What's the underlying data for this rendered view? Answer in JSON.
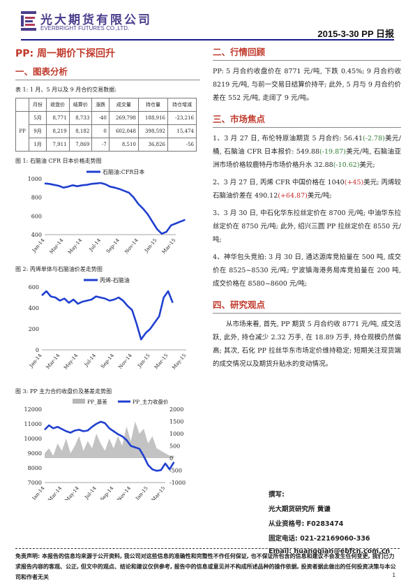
{
  "header": {
    "company_cn": "光大期货有限公司",
    "company_en": "EVERBRIGHT FUTURES CO.,LTD.",
    "date_label": "2015-3-30   PP 日报"
  },
  "title": "PP:  周一期价下探回升",
  "sections": {
    "s1": "一、图表分析",
    "s2": "二、行情回顾",
    "s3": "三、市场焦点",
    "s4": "四、研究观点"
  },
  "table1": {
    "caption": "表 1:  1 月、5 月以及 9 月合约交易数据:",
    "headers": [
      "",
      "月份",
      "收盘价",
      "结算价",
      "涨跌",
      "成交量",
      "持仓量",
      "持仓增减"
    ],
    "product": "PP",
    "rows": [
      [
        "5月",
        "8,771",
        "8,733",
        "-40",
        "269,798",
        "188,916",
        "-23,216"
      ],
      [
        "9月",
        "8,219",
        "8,182",
        "0",
        "602,048",
        "398,592",
        "15,474"
      ],
      [
        "1月",
        "7,911",
        "7,869",
        "-7",
        "8,510",
        "36,826",
        "-56"
      ]
    ]
  },
  "figures": {
    "fig1_caption": "图 1:  石脑油 CFR 日本价格走势图",
    "fig2_caption": "图 2:  丙烯单体与石脑油价差走势图",
    "fig3_caption": "图 3:  PP 主力合约收盘价及基差走势图"
  },
  "chart_data": [
    {
      "type": "line",
      "legend": [
        "石脑油:CFR日本"
      ],
      "x_ticks": [
        "Jan-14",
        "Mar-14",
        "May-14",
        "Jul-14",
        "Sep-14",
        "Nov-14",
        "Jan-15",
        "Mar-15"
      ],
      "ylim": [
        400,
        1000
      ],
      "y_ticks": [
        400,
        600,
        800,
        1000
      ],
      "series": [
        {
          "name": "石脑油:CFR日本",
          "color": "#1f3fcf",
          "x": [
            0,
            0.5,
            1,
            1.5,
            2,
            2.5,
            3,
            3.5,
            4,
            4.5,
            5,
            5.5,
            6,
            6.5,
            7,
            7.5,
            8,
            8.5,
            9,
            9.5,
            10,
            10.5,
            11,
            11.5,
            12,
            12.5,
            13,
            13.5,
            14,
            14.5,
            15
          ],
          "y": [
            950,
            945,
            935,
            925,
            905,
            915,
            930,
            920,
            930,
            935,
            945,
            950,
            955,
            940,
            915,
            905,
            890,
            870,
            850,
            800,
            730,
            680,
            620,
            540,
            460,
            410,
            430,
            500,
            520,
            540,
            560
          ]
        }
      ]
    },
    {
      "type": "line",
      "legend": [
        "丙烯-石脑油"
      ],
      "x_ticks": [
        "Jan-14",
        "Mar-14",
        "May-14",
        "Jul-14",
        "Sep-14",
        "Nov-14",
        "Jan-15",
        "Mar-15",
        "May-15"
      ],
      "ylim": [
        0,
        600
      ],
      "y_ticks": [
        0,
        200,
        400,
        600
      ],
      "series": [
        {
          "name": "丙烯-石脑油",
          "color": "#1f3fcf",
          "x": [
            0,
            0.5,
            1,
            1.5,
            2,
            2.5,
            3,
            3.5,
            4,
            4.5,
            5,
            5.5,
            6,
            6.5,
            7,
            7.5,
            8,
            8.5,
            9,
            9.5,
            10,
            10.5,
            11,
            11.5,
            12,
            12.5,
            13,
            13.5,
            14,
            14.5
          ],
          "y": [
            520,
            560,
            510,
            500,
            470,
            490,
            450,
            480,
            440,
            460,
            470,
            480,
            510,
            500,
            490,
            470,
            480,
            500,
            470,
            420,
            380,
            250,
            100,
            160,
            200,
            260,
            320,
            500,
            560,
            450
          ]
        }
      ]
    },
    {
      "type": "line",
      "legend": [
        "PP_基差",
        "PP_主力收盘价"
      ],
      "y_left": {
        "ylim": [
          7000,
          12000
        ],
        "ticks": [
          7000,
          8000,
          9000,
          10000,
          11000,
          12000
        ]
      },
      "y_right": {
        "ylim": [
          -1000,
          2000
        ],
        "ticks": [
          -1000,
          -500,
          0,
          500,
          1000,
          1500,
          2000
        ]
      },
      "x_ticks": [
        "Jan-14",
        "Mar-14",
        "May-14",
        "Jul-14",
        "Sep-14",
        "Nov-14",
        "Jan-15",
        "Mar-15"
      ],
      "series": [
        {
          "name": "PP_基差",
          "axis": "right",
          "kind": "area",
          "color": "#b8b8b8",
          "x": [
            0,
            0.5,
            1,
            1.5,
            2,
            2.5,
            3,
            3.5,
            4,
            4.5,
            5,
            5.5,
            6,
            6.5,
            7,
            7.5,
            8,
            8.5,
            9,
            9.5,
            10,
            10.5,
            11,
            11.5,
            12,
            12.5,
            13,
            13.5,
            14,
            14.5,
            15
          ],
          "y": [
            200,
            400,
            100,
            600,
            300,
            800,
            200,
            500,
            900,
            300,
            700,
            400,
            1000,
            600,
            300,
            800,
            400,
            900,
            500,
            1300,
            700,
            1500,
            1000,
            1200,
            600,
            900,
            400,
            300,
            200,
            100,
            100
          ]
        },
        {
          "name": "PP_主力收盘价",
          "axis": "left",
          "kind": "line",
          "color": "#1f3fcf",
          "x": [
            0,
            0.5,
            1,
            1.5,
            2,
            2.5,
            3,
            3.5,
            4,
            4.5,
            5,
            5.5,
            6,
            6.5,
            7,
            7.5,
            8,
            8.5,
            9,
            9.5,
            10,
            10.5,
            11,
            11.5,
            12,
            12.5,
            13,
            13.5,
            14,
            14.5,
            15
          ],
          "y": [
            10600,
            10900,
            10700,
            10800,
            10650,
            10500,
            10400,
            10550,
            10600,
            10500,
            10550,
            10800,
            11000,
            11150,
            11050,
            10700,
            10500,
            10300,
            10150,
            9900,
            9500,
            9400,
            9300,
            8800,
            8200,
            7900,
            7800,
            7850,
            8300,
            7900,
            8400
          ]
        }
      ]
    }
  ],
  "review": {
    "text": "PP: 5 月合约收盘价在 8771 元/吨, 下跌 0.45%; 9 月合约收 8219 元/吨, 与前一交易日结算价持平; 此外, 5 月与 9 月合约价差在 552 元/吨, 走阔了 9 元/吨。"
  },
  "focus": {
    "p1_a": "1、3 月 27 日, 布伦特原油期货 5 月合约: 56.41",
    "p1_b": "(-2.78)",
    "p1_c": "美元/桶, 石脑油 CFR 日本报价: 549.88",
    "p1_d": "(-19.87)",
    "p1_e": "美元/吨, 石脑油亚洲市场价格较鹿特丹市场价格升水 32.88",
    "p1_f": "(-10.62)",
    "p1_g": "美元;",
    "p2_a": "2、3 月 27 日, 丙烯 CFR 中国价格在 1040",
    "p2_b": "(+45)",
    "p2_c": "美元; 丙烯较石脑油价差在 490.12",
    "p2_d": "(+64.87)",
    "p2_e": "美元/吨;",
    "p3": "3、3 月 30 日, 中石化华东拉丝定价在 8700 元/吨; 中油华东拉丝定价在 8750 元/吨; 此外, 绍兴三圆 PP 拉丝定价在 8550 元/吨;",
    "p4": "4、神华包头竞拍: 3 月 30 日, 通达源库竞拍量在 500 吨, 成交价在 8525~8530 元/吨; 宁波镇海港务局库竞拍量在 200 吨, 成交价格在 8580~8600 元/吨;"
  },
  "view": {
    "text": "从市场来看, 首先, PP 期货 5 月合约收 8771 元/吨, 成交活跃, 此外, 持仓减少 2.32 万手, 在 18.89 万手, 持仓规模仍然偏高; 其次, 石化 PP 拉丝华东市场定价维持稳定; 短期关注现货端的成交情况以及期货升贴水的变动情况。"
  },
  "author": {
    "label": "撰写:",
    "line1": "光大期货研究所      黄谦",
    "line2": "从业资格号: F0283474",
    "line3": "固定电话: 021-22169060-336",
    "line4": "Email:  huangqian@ebfcn.com.cn"
  },
  "footer": {
    "disclaimer": "免责声明: 本报告的信息均来源于公开资料, 我公司对这些信息的准确性和完整性不作任何保证, 也不保证所包含的信息和建议不会发生任何变更, 我们已力求报告内容的客观、公正, 但文中的观点、结论和建议仅供参考, 报告中的信息或意见并不构成所述品种的操作依据, 投资者据此做出的任何投资决策与本公司和作者无关",
    "page": "1"
  }
}
